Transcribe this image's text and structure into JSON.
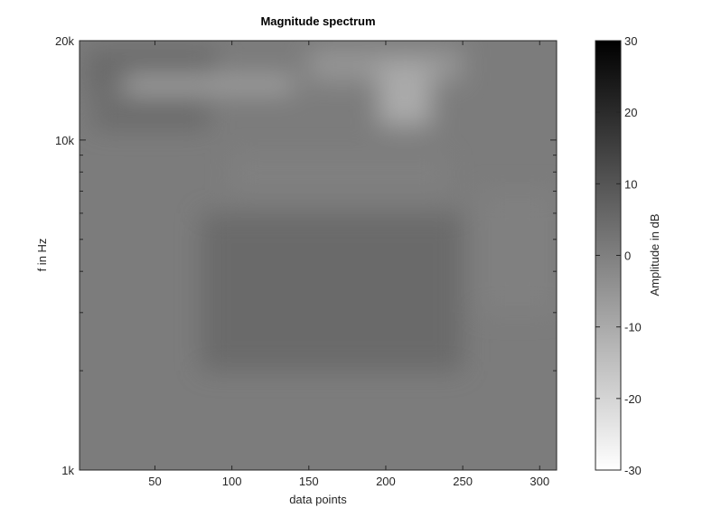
{
  "chart_data": {
    "type": "heatmap",
    "title": "Magnitude spectrum",
    "xlabel": "data points",
    "ylabel": "f in Hz",
    "xlim": [
      1,
      311
    ],
    "ylim": [
      1000,
      20000
    ],
    "yscale": "log",
    "xticks": [
      {
        "value": 50,
        "label": "50"
      },
      {
        "value": 100,
        "label": "100"
      },
      {
        "value": 150,
        "label": "150"
      },
      {
        "value": 200,
        "label": "200"
      },
      {
        "value": 250,
        "label": "250"
      },
      {
        "value": 300,
        "label": "300"
      }
    ],
    "yticks": [
      {
        "value": 1000,
        "label": "1k"
      },
      {
        "value": 10000,
        "label": "10k"
      },
      {
        "value": 20000,
        "label": "20k"
      }
    ],
    "colorbar": {
      "label": "Amplitude in dB",
      "range": [
        -30,
        30
      ],
      "ticks": [
        {
          "value": 30,
          "label": "30"
        },
        {
          "value": 20,
          "label": "20"
        },
        {
          "value": 10,
          "label": "10"
        },
        {
          "value": 0,
          "label": "0"
        },
        {
          "value": -10,
          "label": "-10"
        },
        {
          "value": -20,
          "label": "-20"
        },
        {
          "value": -30,
          "label": "-30"
        }
      ],
      "colormap": "gray-reversed",
      "color_high": "#000000",
      "color_low": "#ffffff"
    },
    "grid": false,
    "regions": [
      {
        "x": [
          5,
          90
        ],
        "f": [
          13500,
          19000
        ],
        "db": 5
      },
      {
        "x": [
          10,
          85
        ],
        "f": [
          10800,
          13000
        ],
        "db": 5
      },
      {
        "x": [
          30,
          140
        ],
        "f": [
          14000,
          15500
        ],
        "db": -10
      },
      {
        "x": [
          150,
          250
        ],
        "f": [
          15000,
          19000
        ],
        "db": -5
      },
      {
        "x": [
          195,
          230
        ],
        "f": [
          11000,
          17000
        ],
        "db": -10
      },
      {
        "x": [
          100,
          240
        ],
        "f": [
          7000,
          9000
        ],
        "db": 0
      },
      {
        "x": [
          80,
          250
        ],
        "f": [
          2000,
          6000
        ],
        "db": 5
      },
      {
        "x": [
          260,
          311
        ],
        "f": [
          3000,
          7000
        ],
        "db": 0
      }
    ]
  }
}
